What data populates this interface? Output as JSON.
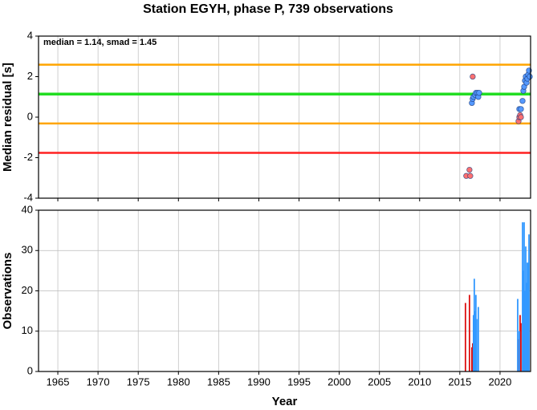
{
  "chart_data": [
    {
      "type": "scatter",
      "title": "Station EGYH, phase P, 739 observations",
      "annotation": "median = 1.14, smad = 1.45",
      "y_label": "Median residual [s]",
      "xlim": [
        1962.6,
        2023.8
      ],
      "xticks": [
        1965,
        1970,
        1975,
        1980,
        1985,
        1990,
        1995,
        2000,
        2005,
        2010,
        2015,
        2020
      ],
      "ylim": [
        -4,
        4
      ],
      "yticks": [
        -4,
        -2,
        0,
        2,
        4
      ],
      "grid": "x",
      "hlines": [
        {
          "value": 2.59,
          "color": "#ffa500"
        },
        {
          "value": 1.14,
          "color": "#22dd22"
        },
        {
          "value": -0.31,
          "color": "#ffa500"
        },
        {
          "value": -1.76,
          "color": "#ff2020"
        }
      ],
      "series": [
        {
          "color": "#ff7070",
          "x": [
            2015.8,
            2016.2,
            2016.3,
            2016.6,
            2022.3,
            2022.4,
            2022.5,
            2022.6
          ],
          "values": [
            -2.9,
            -2.6,
            -2.9,
            2.0,
            -0.2,
            0.0,
            0.1,
            0.0
          ]
        },
        {
          "color": "#5599ff",
          "x": [
            2016.5,
            2016.6,
            2016.7,
            2016.9,
            2017.0,
            2017.2,
            2017.3,
            2017.4,
            2022.4,
            2022.6,
            2022.8,
            2022.9,
            2023.0,
            2023.1,
            2023.2,
            2023.3,
            2023.4,
            2023.5,
            2023.6,
            2023.7
          ],
          "values": [
            0.7,
            0.9,
            1.0,
            1.1,
            1.2,
            1.2,
            1.0,
            1.2,
            0.4,
            0.4,
            0.8,
            1.3,
            1.5,
            1.8,
            2.0,
            1.7,
            1.9,
            2.1,
            2.3,
            2.0
          ]
        }
      ]
    },
    {
      "type": "bar",
      "x_label": "Year",
      "y_label": "Observations",
      "xlim": [
        1962.6,
        2023.8
      ],
      "xticks": [
        1965,
        1970,
        1975,
        1980,
        1985,
        1990,
        1995,
        2000,
        2005,
        2010,
        2015,
        2020
      ],
      "ylim": [
        0,
        40
      ],
      "yticks": [
        0,
        10,
        20,
        30,
        40
      ],
      "grid": "both",
      "series": [
        {
          "color": "#dd1111",
          "x": [
            2015.7,
            2016.2,
            2016.5,
            2016.6,
            2022.3,
            2022.5,
            2022.6
          ],
          "values": [
            17,
            19,
            6,
            7,
            8,
            14,
            12
          ]
        },
        {
          "color": "#3399ff",
          "x": [
            2016.7,
            2016.8,
            2016.9,
            2017.0,
            2017.1,
            2017.3,
            2022.2,
            2022.4,
            2022.8,
            2022.9,
            2023.0,
            2023.1,
            2023.2,
            2023.3,
            2023.4,
            2023.5,
            2023.6
          ],
          "values": [
            14,
            23,
            15,
            19,
            13,
            16,
            18,
            10,
            37,
            25,
            37,
            20,
            31,
            22,
            27,
            27,
            34
          ]
        }
      ]
    }
  ]
}
